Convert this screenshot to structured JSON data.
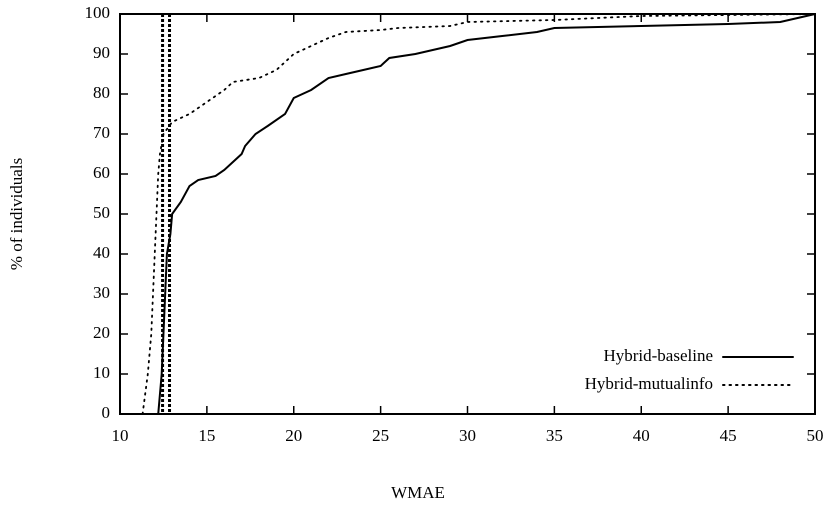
{
  "chart_data": {
    "type": "line",
    "x_label": "WMAE",
    "y_label": "% of individuals",
    "xlim": [
      10,
      50
    ],
    "ylim": [
      0,
      100
    ],
    "xticks": [
      10,
      15,
      20,
      25,
      30,
      35,
      40,
      45,
      50
    ],
    "yticks": [
      0,
      10,
      20,
      30,
      40,
      50,
      60,
      70,
      80,
      90,
      100
    ],
    "legend_position": "lower right",
    "vlines": [
      12.45,
      12.85
    ],
    "series": [
      {
        "name": "Hybrid-baseline",
        "color": "#000000",
        "style": "solid",
        "x": [
          12.2,
          12.4,
          12.5,
          12.6,
          12.7,
          12.9,
          13,
          13.5,
          14,
          14.5,
          15.5,
          16,
          16.5,
          17,
          17.2,
          17.8,
          18.5,
          19.5,
          20,
          21,
          22,
          23,
          24,
          25,
          25.5,
          27,
          28,
          29,
          30,
          32,
          34,
          35,
          40,
          45,
          48,
          49,
          50
        ],
        "values": [
          0,
          10,
          20,
          30,
          40,
          45,
          50,
          53,
          57,
          58.5,
          59.5,
          61,
          63,
          65,
          67,
          70,
          72,
          75,
          79,
          81,
          84,
          85,
          86,
          87,
          89,
          90,
          91,
          92,
          93.5,
          94.5,
          95.5,
          96.5,
          97,
          97.5,
          98,
          99,
          100
        ]
      },
      {
        "name": "Hybrid-mutualinfo",
        "color": "#000000",
        "style": "dotted",
        "x": [
          11.3,
          11.6,
          11.8,
          11.9,
          12,
          12.1,
          12.2,
          12.3,
          12.5,
          13,
          14,
          15,
          16,
          16.5,
          18,
          19,
          20,
          21,
          22,
          23,
          25,
          26,
          29,
          30,
          35,
          40,
          50
        ],
        "values": [
          0,
          10,
          20,
          30,
          40,
          50,
          60,
          65,
          70,
          73,
          75,
          78,
          81,
          83,
          84,
          86,
          90,
          92,
          94,
          95.5,
          96,
          96.5,
          97,
          98,
          98.5,
          99.5,
          100
        ]
      }
    ]
  }
}
